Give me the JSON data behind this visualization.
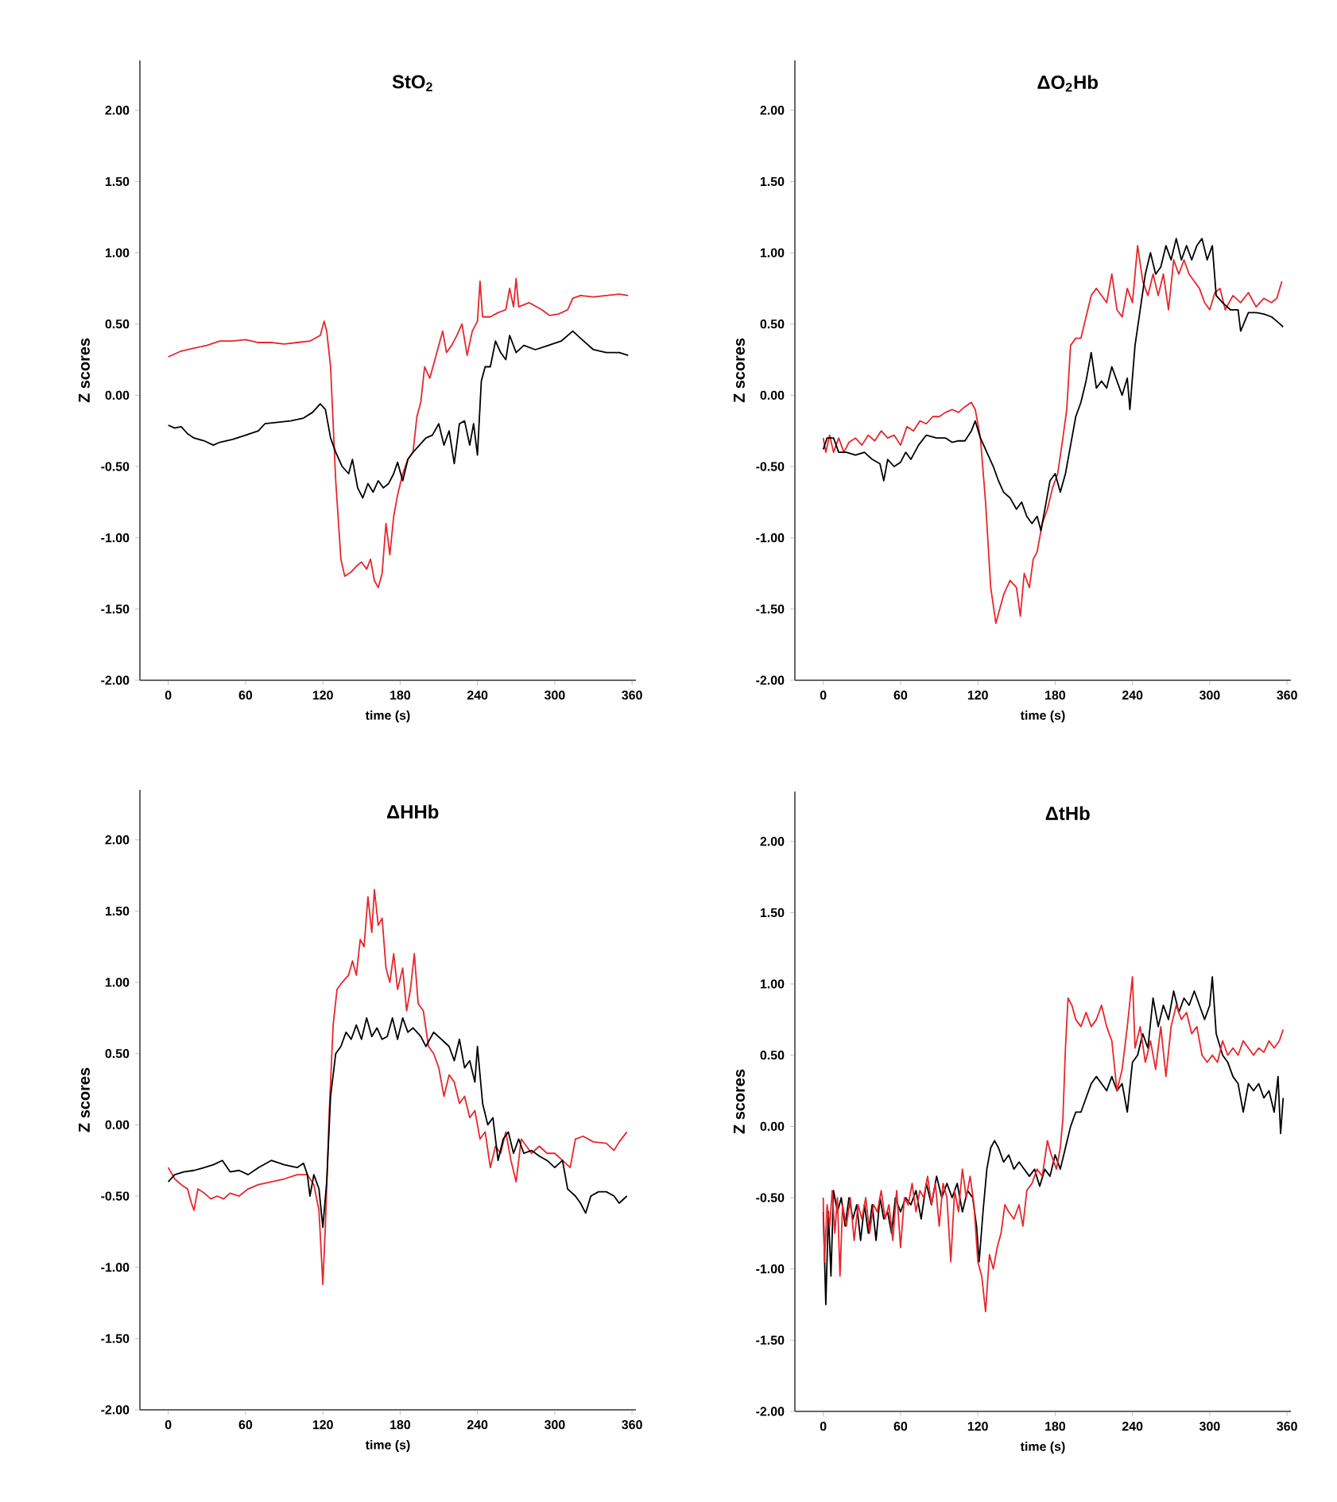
{
  "chart_data": [
    {
      "type": "line",
      "title": "StO$_{2}$",
      "xlabel": "time (s)",
      "ylabel": "Z scores",
      "xlim": [
        -22,
        363
      ],
      "ylim": [
        -2,
        2.35
      ],
      "xticks": [
        0,
        60,
        120,
        180,
        240,
        300,
        360
      ],
      "yticks": [
        {
          "value": -2,
          "label": "-2.00"
        },
        {
          "value": -1.5,
          "label": "-1.50"
        },
        {
          "value": -1,
          "label": "-1.00"
        },
        {
          "value": -0.5,
          "label": "-0.50"
        },
        {
          "value": 0,
          "label": "0.00"
        },
        {
          "value": 0.5,
          "label": "0.50"
        },
        {
          "value": 1,
          "label": "1.00"
        },
        {
          "value": 1.5,
          "label": "1.50"
        },
        {
          "value": 2,
          "label": "2.00"
        }
      ],
      "series": [
        {
          "color": "#e8262c",
          "x": [
            0,
            10,
            20,
            30,
            40,
            50,
            60,
            70,
            80,
            90,
            100,
            110,
            118,
            121,
            123,
            126,
            130,
            134,
            137,
            142,
            146,
            150,
            154,
            157,
            160,
            163,
            166,
            169,
            172,
            175,
            178,
            182,
            186,
            190,
            193,
            196,
            199,
            203,
            207,
            210,
            213,
            216,
            220,
            224,
            228,
            232,
            236,
            240,
            242,
            244,
            250,
            256,
            262,
            265,
            268,
            270,
            272,
            280,
            290,
            296,
            303,
            310,
            314,
            320,
            330,
            340,
            350,
            357
          ],
          "values": [
            0.27,
            0.31,
            0.33,
            0.35,
            0.38,
            0.38,
            0.39,
            0.37,
            0.37,
            0.36,
            0.37,
            0.38,
            0.42,
            0.52,
            0.45,
            0.2,
            -0.6,
            -1.15,
            -1.27,
            -1.24,
            -1.2,
            -1.17,
            -1.22,
            -1.15,
            -1.3,
            -1.35,
            -1.25,
            -0.9,
            -1.12,
            -0.85,
            -0.7,
            -0.55,
            -0.45,
            -0.4,
            -0.15,
            -0.05,
            0.2,
            0.12,
            0.25,
            0.35,
            0.45,
            0.3,
            0.35,
            0.42,
            0.5,
            0.28,
            0.45,
            0.52,
            0.8,
            0.55,
            0.55,
            0.58,
            0.6,
            0.75,
            0.62,
            0.82,
            0.62,
            0.65,
            0.6,
            0.56,
            0.57,
            0.6,
            0.68,
            0.7,
            0.69,
            0.7,
            0.71,
            0.7
          ]
        },
        {
          "color": "#000000",
          "x": [
            0,
            5,
            10,
            15,
            20,
            28,
            35,
            40,
            50,
            60,
            70,
            75,
            85,
            95,
            105,
            112,
            118,
            122,
            126,
            130,
            135,
            140,
            143,
            147,
            151,
            155,
            159,
            163,
            167,
            171,
            175,
            178,
            182,
            186,
            190,
            195,
            200,
            205,
            210,
            214,
            218,
            222,
            226,
            230,
            234,
            237,
            240,
            243,
            246,
            250,
            254,
            258,
            262,
            265,
            270,
            276,
            285,
            295,
            305,
            314,
            320,
            330,
            340,
            350,
            357
          ],
          "values": [
            -0.21,
            -0.23,
            -0.22,
            -0.27,
            -0.3,
            -0.32,
            -0.35,
            -0.33,
            -0.31,
            -0.28,
            -0.25,
            -0.2,
            -0.19,
            -0.18,
            -0.16,
            -0.12,
            -0.06,
            -0.1,
            -0.3,
            -0.4,
            -0.5,
            -0.55,
            -0.45,
            -0.65,
            -0.72,
            -0.62,
            -0.68,
            -0.6,
            -0.65,
            -0.62,
            -0.55,
            -0.47,
            -0.6,
            -0.45,
            -0.4,
            -0.35,
            -0.3,
            -0.28,
            -0.2,
            -0.35,
            -0.25,
            -0.48,
            -0.2,
            -0.18,
            -0.35,
            -0.2,
            -0.42,
            0.1,
            0.2,
            0.2,
            0.38,
            0.3,
            0.25,
            0.42,
            0.3,
            0.35,
            0.32,
            0.35,
            0.38,
            0.45,
            0.4,
            0.32,
            0.3,
            0.3,
            0.28
          ]
        }
      ]
    },
    {
      "type": "line",
      "title": "ΔO$_{2}$Hb",
      "xlabel": "time (s)",
      "ylabel": "Z scores",
      "xlim": [
        -22,
        363
      ],
      "ylim": [
        -2,
        2.35
      ],
      "xticks": [
        0,
        60,
        120,
        180,
        240,
        300,
        360
      ],
      "yticks": [
        {
          "value": -2,
          "label": "-2.00"
        },
        {
          "value": -1.5,
          "label": "-1.50"
        },
        {
          "value": -1,
          "label": "-1.00"
        },
        {
          "value": -0.5,
          "label": "-0.50"
        },
        {
          "value": 0,
          "label": "0.00"
        },
        {
          "value": 0.5,
          "label": "0.50"
        },
        {
          "value": 1,
          "label": "1.00"
        },
        {
          "value": 1.5,
          "label": "1.50"
        },
        {
          "value": 2,
          "label": "2.00"
        }
      ],
      "series": [
        {
          "color": "#e8262c",
          "x": [
            0,
            2,
            5,
            8,
            12,
            16,
            20,
            25,
            30,
            35,
            40,
            45,
            50,
            55,
            60,
            65,
            70,
            75,
            80,
            85,
            90,
            95,
            100,
            105,
            110,
            115,
            118,
            122,
            126,
            130,
            134,
            137,
            140,
            145,
            150,
            153,
            156,
            160,
            163,
            166,
            170,
            174,
            178,
            182,
            186,
            189,
            192,
            196,
            200,
            204,
            208,
            212,
            216,
            220,
            224,
            228,
            232,
            236,
            240,
            244,
            248,
            252,
            256,
            260,
            264,
            268,
            272,
            276,
            280,
            284,
            288,
            292,
            296,
            300,
            304,
            308,
            312,
            318,
            324,
            330,
            336,
            342,
            348,
            352,
            356
          ],
          "values": [
            -0.3,
            -0.4,
            -0.28,
            -0.4,
            -0.3,
            -0.4,
            -0.33,
            -0.3,
            -0.35,
            -0.28,
            -0.32,
            -0.25,
            -0.3,
            -0.28,
            -0.35,
            -0.22,
            -0.25,
            -0.18,
            -0.2,
            -0.15,
            -0.15,
            -0.12,
            -0.1,
            -0.12,
            -0.08,
            -0.05,
            -0.1,
            -0.3,
            -0.75,
            -1.35,
            -1.6,
            -1.5,
            -1.4,
            -1.3,
            -1.35,
            -1.55,
            -1.25,
            -1.35,
            -1.15,
            -1.1,
            -0.9,
            -0.8,
            -0.65,
            -0.55,
            -0.3,
            -0.1,
            0.35,
            0.4,
            0.4,
            0.55,
            0.7,
            0.75,
            0.7,
            0.65,
            0.85,
            0.6,
            0.55,
            0.75,
            0.65,
            1.05,
            0.8,
            0.7,
            0.85,
            0.7,
            0.85,
            0.6,
            0.95,
            0.85,
            0.95,
            0.85,
            0.8,
            0.75,
            0.65,
            0.6,
            0.72,
            0.75,
            0.6,
            0.7,
            0.65,
            0.72,
            0.62,
            0.68,
            0.65,
            0.68,
            0.8
          ]
        },
        {
          "color": "#000000",
          "x": [
            0,
            3,
            8,
            12,
            18,
            25,
            32,
            38,
            44,
            47,
            50,
            55,
            60,
            64,
            68,
            74,
            80,
            88,
            95,
            100,
            105,
            110,
            115,
            118,
            122,
            128,
            132,
            136,
            140,
            145,
            150,
            154,
            158,
            162,
            166,
            169,
            172,
            176,
            180,
            184,
            188,
            192,
            196,
            200,
            204,
            208,
            212,
            216,
            220,
            224,
            228,
            232,
            236,
            238,
            242,
            246,
            250,
            254,
            258,
            262,
            266,
            270,
            274,
            278,
            282,
            286,
            290,
            294,
            298,
            302,
            305,
            310,
            316,
            322,
            324,
            330,
            336,
            342,
            348,
            352,
            357
          ],
          "values": [
            -0.38,
            -0.3,
            -0.3,
            -0.4,
            -0.4,
            -0.42,
            -0.4,
            -0.45,
            -0.48,
            -0.6,
            -0.45,
            -0.5,
            -0.47,
            -0.4,
            -0.45,
            -0.35,
            -0.28,
            -0.3,
            -0.3,
            -0.33,
            -0.32,
            -0.32,
            -0.25,
            -0.18,
            -0.3,
            -0.42,
            -0.5,
            -0.6,
            -0.68,
            -0.72,
            -0.8,
            -0.75,
            -0.85,
            -0.9,
            -0.85,
            -0.95,
            -0.8,
            -0.6,
            -0.55,
            -0.68,
            -0.55,
            -0.35,
            -0.15,
            -0.05,
            0.1,
            0.3,
            0.05,
            0.1,
            0.05,
            0.2,
            0.1,
            0.0,
            0.12,
            -0.1,
            0.35,
            0.6,
            0.85,
            1.0,
            0.85,
            0.9,
            1.05,
            0.95,
            1.1,
            0.95,
            1.05,
            0.95,
            1.05,
            1.1,
            0.95,
            1.05,
            0.7,
            0.65,
            0.6,
            0.6,
            0.45,
            0.58,
            0.58,
            0.57,
            0.55,
            0.52,
            0.48
          ]
        }
      ]
    },
    {
      "type": "line",
      "title": "ΔHHb",
      "xlabel": "time (s)",
      "ylabel": "Z scores",
      "xlim": [
        -22,
        363
      ],
      "ylim": [
        -2,
        2.35
      ],
      "xticks": [
        0,
        60,
        120,
        180,
        240,
        300,
        360
      ],
      "yticks": [
        {
          "value": -2,
          "label": "-2.00"
        },
        {
          "value": -1.5,
          "label": "-1.50"
        },
        {
          "value": -1,
          "label": "-1.00"
        },
        {
          "value": -0.5,
          "label": "-0.50"
        },
        {
          "value": 0,
          "label": "0.00"
        },
        {
          "value": 0.5,
          "label": "0.50"
        },
        {
          "value": 1,
          "label": "1.00"
        },
        {
          "value": 1.5,
          "label": "1.50"
        },
        {
          "value": 2,
          "label": "2.00"
        }
      ],
      "series": [
        {
          "color": "#e8262c",
          "x": [
            0,
            5,
            10,
            15,
            18,
            20,
            23,
            28,
            33,
            38,
            43,
            48,
            55,
            62,
            70,
            80,
            90,
            100,
            108,
            113,
            117,
            120,
            122,
            125,
            128,
            131,
            135,
            140,
            143,
            146,
            149,
            152,
            155,
            158,
            160,
            163,
            166,
            169,
            172,
            175,
            178,
            182,
            185,
            188,
            191,
            194,
            198,
            202,
            206,
            210,
            214,
            218,
            222,
            226,
            230,
            234,
            238,
            242,
            246,
            250,
            254,
            258,
            262,
            266,
            270,
            274,
            278,
            282,
            288,
            294,
            300,
            306,
            312,
            316,
            322,
            330,
            340,
            346,
            350,
            356
          ],
          "values": [
            -0.3,
            -0.38,
            -0.42,
            -0.45,
            -0.55,
            -0.6,
            -0.45,
            -0.48,
            -0.52,
            -0.5,
            -0.52,
            -0.48,
            -0.5,
            -0.45,
            -0.42,
            -0.4,
            -0.38,
            -0.35,
            -0.35,
            -0.42,
            -0.6,
            -1.12,
            -0.7,
            0.1,
            0.7,
            0.95,
            1.0,
            1.05,
            1.15,
            1.05,
            1.3,
            1.25,
            1.6,
            1.35,
            1.65,
            1.4,
            1.45,
            1.1,
            1.0,
            1.2,
            0.95,
            1.1,
            0.8,
            0.95,
            1.2,
            0.85,
            0.8,
            0.55,
            0.5,
            0.4,
            0.2,
            0.35,
            0.3,
            0.15,
            0.2,
            0.05,
            0.1,
            -0.1,
            -0.05,
            -0.3,
            -0.15,
            -0.2,
            -0.05,
            -0.25,
            -0.4,
            -0.1,
            -0.15,
            -0.2,
            -0.15,
            -0.2,
            -0.2,
            -0.25,
            -0.3,
            -0.1,
            -0.08,
            -0.12,
            -0.13,
            -0.18,
            -0.12,
            -0.05
          ]
        },
        {
          "color": "#000000",
          "x": [
            0,
            5,
            12,
            20,
            28,
            35,
            42,
            48,
            55,
            62,
            70,
            80,
            90,
            100,
            105,
            108,
            110,
            113,
            117,
            120,
            123,
            126,
            130,
            134,
            138,
            142,
            146,
            150,
            154,
            158,
            162,
            166,
            170,
            174,
            178,
            182,
            186,
            190,
            196,
            200,
            206,
            212,
            218,
            222,
            226,
            230,
            234,
            238,
            240,
            244,
            248,
            252,
            256,
            260,
            264,
            268,
            272,
            276,
            282,
            288,
            294,
            300,
            306,
            310,
            316,
            320,
            324,
            328,
            334,
            340,
            346,
            350,
            356
          ],
          "values": [
            -0.4,
            -0.35,
            -0.33,
            -0.32,
            -0.3,
            -0.28,
            -0.25,
            -0.33,
            -0.32,
            -0.35,
            -0.3,
            -0.25,
            -0.28,
            -0.3,
            -0.27,
            -0.35,
            -0.5,
            -0.35,
            -0.45,
            -0.72,
            -0.4,
            0.2,
            0.5,
            0.55,
            0.65,
            0.6,
            0.7,
            0.6,
            0.75,
            0.62,
            0.68,
            0.6,
            0.62,
            0.75,
            0.6,
            0.75,
            0.65,
            0.68,
            0.62,
            0.55,
            0.65,
            0.6,
            0.55,
            0.45,
            0.6,
            0.4,
            0.45,
            0.3,
            0.55,
            0.15,
            0.0,
            0.05,
            -0.25,
            -0.1,
            -0.05,
            -0.2,
            -0.1,
            -0.2,
            -0.18,
            -0.22,
            -0.25,
            -0.3,
            -0.25,
            -0.45,
            -0.5,
            -0.55,
            -0.62,
            -0.5,
            -0.47,
            -0.47,
            -0.5,
            -0.55,
            -0.5
          ]
        }
      ]
    },
    {
      "type": "line",
      "title": "ΔtHb",
      "xlabel": "time (s)",
      "ylabel": "Z scores",
      "xlim": [
        -22,
        363
      ],
      "ylim": [
        -2,
        2.35
      ],
      "xticks": [
        0,
        60,
        120,
        180,
        240,
        300,
        360
      ],
      "yticks": [
        {
          "value": -2,
          "label": "-2.00"
        },
        {
          "value": -1.5,
          "label": "-1.50"
        },
        {
          "value": -1,
          "label": "-1.00"
        },
        {
          "value": -0.5,
          "label": "-0.50"
        },
        {
          "value": 0,
          "label": "0.00"
        },
        {
          "value": 0.5,
          "label": "0.50"
        },
        {
          "value": 1,
          "label": "1.00"
        },
        {
          "value": 1.5,
          "label": "1.50"
        },
        {
          "value": 2,
          "label": "2.00"
        }
      ],
      "series": [
        {
          "color": "#000000",
          "x": [
            0,
            2,
            4,
            6,
            8,
            11,
            14,
            17,
            20,
            23,
            26,
            29,
            32,
            35,
            38,
            41,
            44,
            47,
            50,
            53,
            56,
            60,
            64,
            68,
            72,
            76,
            80,
            84,
            88,
            92,
            96,
            100,
            104,
            108,
            112,
            116,
            119,
            121,
            124,
            127,
            130,
            133,
            136,
            140,
            144,
            148,
            152,
            156,
            160,
            164,
            168,
            172,
            176,
            180,
            184,
            188,
            192,
            196,
            200,
            204,
            208,
            212,
            216,
            220,
            224,
            228,
            232,
            236,
            240,
            244,
            248,
            252,
            256,
            260,
            264,
            268,
            272,
            276,
            280,
            284,
            288,
            292,
            296,
            300,
            302,
            305,
            310,
            314,
            318,
            322,
            326,
            330,
            334,
            338,
            342,
            346,
            350,
            353,
            355,
            357
          ],
          "values": [
            -0.6,
            -1.25,
            -0.6,
            -1.05,
            -0.45,
            -0.6,
            -0.5,
            -0.7,
            -0.5,
            -0.65,
            -0.55,
            -0.8,
            -0.55,
            -0.75,
            -0.55,
            -0.8,
            -0.5,
            -0.65,
            -0.6,
            -0.75,
            -0.5,
            -0.6,
            -0.5,
            -0.55,
            -0.45,
            -0.65,
            -0.4,
            -0.55,
            -0.35,
            -0.5,
            -0.4,
            -0.5,
            -0.4,
            -0.6,
            -0.45,
            -0.5,
            -0.7,
            -0.95,
            -0.6,
            -0.3,
            -0.15,
            -0.1,
            -0.15,
            -0.25,
            -0.2,
            -0.3,
            -0.25,
            -0.3,
            -0.35,
            -0.3,
            -0.42,
            -0.3,
            -0.35,
            -0.2,
            -0.3,
            -0.15,
            0.0,
            0.1,
            0.1,
            0.2,
            0.3,
            0.35,
            0.3,
            0.25,
            0.35,
            0.25,
            0.3,
            0.1,
            0.45,
            0.5,
            0.65,
            0.55,
            0.9,
            0.7,
            0.85,
            0.75,
            0.95,
            0.8,
            0.9,
            0.85,
            0.95,
            0.85,
            0.75,
            0.85,
            1.05,
            0.65,
            0.5,
            0.45,
            0.35,
            0.3,
            0.1,
            0.3,
            0.25,
            0.3,
            0.2,
            0.25,
            0.1,
            0.35,
            -0.05,
            0.2
          ]
        },
        {
          "color": "#e8262c",
          "x": [
            0,
            1,
            3,
            5,
            7,
            9,
            11,
            13,
            15,
            18,
            21,
            24,
            27,
            30,
            33,
            36,
            39,
            42,
            45,
            48,
            51,
            54,
            57,
            60,
            63,
            66,
            69,
            72,
            75,
            78,
            81,
            84,
            87,
            90,
            93,
            96,
            99,
            102,
            105,
            108,
            111,
            114,
            117,
            120,
            123,
            126,
            129,
            132,
            135,
            138,
            141,
            144,
            148,
            152,
            155,
            158,
            162,
            166,
            170,
            174,
            177,
            181,
            184,
            186,
            188,
            190,
            193,
            196,
            200,
            204,
            208,
            212,
            216,
            220,
            224,
            228,
            232,
            236,
            240,
            242,
            246,
            250,
            254,
            258,
            262,
            266,
            270,
            274,
            278,
            282,
            286,
            290,
            294,
            298,
            302,
            306,
            310,
            314,
            318,
            322,
            326,
            330,
            334,
            338,
            342,
            346,
            350,
            354,
            357
          ],
          "values": [
            -0.5,
            -0.95,
            -0.55,
            -0.7,
            -0.45,
            -0.75,
            -0.5,
            -1.05,
            -0.55,
            -0.7,
            -0.5,
            -0.8,
            -0.55,
            -0.65,
            -0.5,
            -0.75,
            -0.55,
            -0.6,
            -0.45,
            -0.65,
            -0.55,
            -0.8,
            -0.45,
            -0.85,
            -0.5,
            -0.55,
            -0.4,
            -0.6,
            -0.45,
            -0.5,
            -0.35,
            -0.55,
            -0.4,
            -0.7,
            -0.4,
            -0.5,
            -0.95,
            -0.45,
            -0.6,
            -0.3,
            -0.5,
            -0.35,
            -0.55,
            -0.95,
            -1.05,
            -1.3,
            -0.9,
            -1.0,
            -0.85,
            -0.75,
            -0.55,
            -0.6,
            -0.65,
            -0.55,
            -0.7,
            -0.45,
            -0.4,
            -0.3,
            -0.35,
            -0.1,
            -0.2,
            -0.3,
            -0.15,
            0.05,
            0.55,
            0.9,
            0.85,
            0.75,
            0.7,
            0.8,
            0.7,
            0.75,
            0.85,
            0.7,
            0.6,
            0.25,
            0.4,
            0.7,
            1.05,
            0.55,
            0.7,
            0.45,
            0.6,
            0.4,
            0.7,
            0.35,
            0.7,
            0.85,
            0.75,
            0.8,
            0.65,
            0.7,
            0.5,
            0.45,
            0.5,
            0.45,
            0.6,
            0.5,
            0.55,
            0.5,
            0.6,
            0.55,
            0.5,
            0.55,
            0.52,
            0.6,
            0.55,
            0.6,
            0.68
          ]
        }
      ]
    }
  ]
}
